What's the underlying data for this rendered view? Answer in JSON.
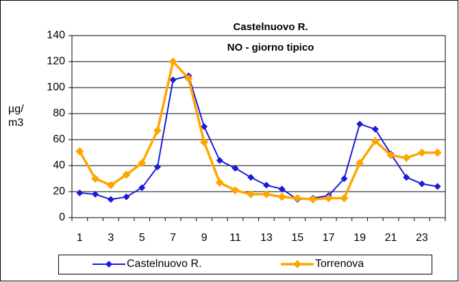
{
  "chart_data": {
    "type": "line",
    "title": "Castelnuovo R.",
    "subtitle": "NO - giorno tipico",
    "y_label": [
      "µg/",
      "m3"
    ],
    "categories": [
      1,
      null,
      3,
      null,
      5,
      null,
      7,
      null,
      9,
      null,
      11,
      null,
      13,
      null,
      15,
      null,
      17,
      null,
      19,
      null,
      21,
      null,
      23,
      null
    ],
    "series": [
      {
        "name": "Castelnuovo R.",
        "color": "#1a1ad8",
        "values": [
          19,
          18,
          14,
          16,
          23,
          39,
          106,
          109,
          70,
          44,
          38,
          31,
          25,
          22,
          14,
          15,
          17,
          30,
          72,
          68,
          49,
          31,
          26,
          24
        ]
      },
      {
        "name": "Torrenova",
        "color": "#ffa500",
        "values": [
          51,
          30,
          25,
          33,
          42,
          67,
          120,
          107,
          58,
          27,
          21,
          18,
          18,
          16,
          15,
          14,
          15,
          15,
          42,
          59,
          48,
          46,
          50,
          50
        ]
      }
    ],
    "ylim": [
      0,
      140
    ],
    "yticks": [
      0,
      20,
      40,
      60,
      80,
      100,
      120,
      140
    ],
    "grid": true,
    "legend": "bottom"
  }
}
